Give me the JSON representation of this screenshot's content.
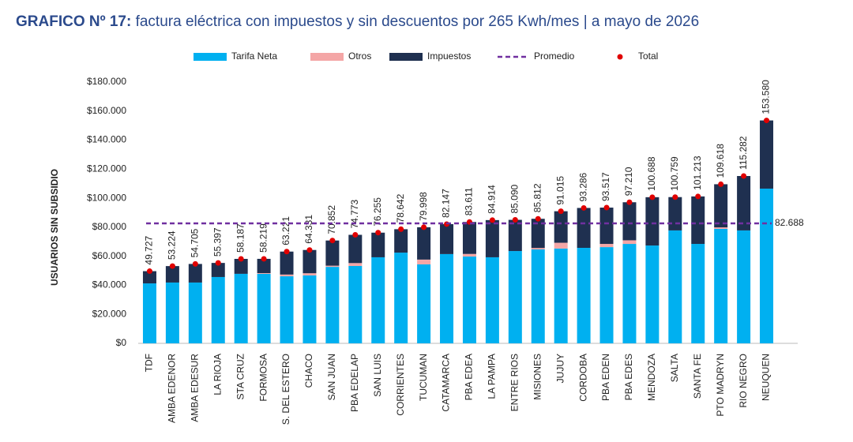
{
  "chart_data": {
    "type": "bar",
    "title": [
      "GRAFICO Nº 17:",
      "factura eléctrica con impuestos y sin descuentos por 265 Kwh/mes | a mayo de 2026"
    ],
    "y_label": "USUARIOS SIN SUBSIDIO",
    "categories": [
      "TDF",
      "AMBA EDENOR",
      "AMBA EDESUR",
      "LA RIOJA",
      "STA CRUZ",
      "FORMOSA",
      "S. DEL ESTERO",
      "CHACO",
      "SAN JUAN",
      "PBA EDELAP",
      "SAN LUIS",
      "CORRIENTES",
      "TUCUMAN",
      "CATAMARCA",
      "PBA EDEA",
      "LA PAMPA",
      "ENTRE RIOS",
      "MISIONES",
      "JUJUY",
      "CORDOBA",
      "PBA EDEN",
      "PBA EDES",
      "MENDOZA",
      "SALTA",
      "SANTA FE",
      "PTO MADRYN",
      "RIO NEGRO",
      "NEUQUEN"
    ],
    "stacked": true,
    "series": [
      {
        "name": "Tarifa Neta",
        "color": "#00b0f0",
        "type": "bar",
        "values": [
          41300,
          41900,
          41900,
          45700,
          47900,
          47900,
          46200,
          46800,
          52700,
          53300,
          59300,
          62500,
          54400,
          61500,
          59800,
          59300,
          63600,
          64700,
          65300,
          65800,
          66300,
          68500,
          67400,
          77800,
          68500,
          78900,
          77800,
          106600
        ]
      },
      {
        "name": "Otros",
        "color": "#f4a6a6",
        "type": "bar",
        "values": [
          0,
          0,
          0,
          0,
          0,
          500,
          1200,
          1500,
          800,
          2000,
          0,
          0,
          3300,
          0,
          1800,
          0,
          0,
          1000,
          4000,
          0,
          2200,
          2500,
          0,
          0,
          0,
          1000,
          0,
          0
        ]
      },
      {
        "name": "Impuestos",
        "color": "#1f3050",
        "type": "bar",
        "values": [
          8427,
          11324,
          12805,
          9697,
          10287,
          9819,
          15821,
          16031,
          17352,
          19473,
          16955,
          16142,
          22298,
          20647,
          22011,
          25614,
          21490,
          20112,
          21715,
          27486,
          25017,
          26210,
          33288,
          22959,
          32713,
          29718,
          37482,
          46980
        ]
      },
      {
        "name": "Total",
        "color": "#e00000",
        "type": "scatter",
        "values": [
          49727,
          53224,
          54705,
          55397,
          58187,
          58219,
          63221,
          64331,
          70852,
          74773,
          76255,
          78642,
          79998,
          82147,
          83611,
          84914,
          85090,
          85812,
          91015,
          93286,
          93517,
          97210,
          100688,
          100759,
          101213,
          109618,
          115282,
          153580
        ],
        "value_labels": [
          "49.727",
          "53.224",
          "54.705",
          "55.397",
          "58.187",
          "58.219",
          "63.221",
          "64.331",
          "70.852",
          "74.773",
          "76.255",
          "78.642",
          "79.998",
          "82.147",
          "83.611",
          "84.914",
          "85.090",
          "85.812",
          "91.015",
          "93.286",
          "93.517",
          "97.210",
          "100.688",
          "100.759",
          "101.213",
          "109.618",
          "115.282",
          "153.580"
        ]
      }
    ],
    "reference_line": {
      "name": "Promedio",
      "value": 82688,
      "value_label": "82.688",
      "color": "#7030a0"
    },
    "ylim": [
      0,
      180000
    ],
    "yticks": [
      {
        "value": 0,
        "label": "$0"
      },
      {
        "value": 20000,
        "label": "$20.000"
      },
      {
        "value": 40000,
        "label": "$40.000"
      },
      {
        "value": 60000,
        "label": "$60.000"
      },
      {
        "value": 80000,
        "label": "$80.000"
      },
      {
        "value": 100000,
        "label": "$100.000"
      },
      {
        "value": 120000,
        "label": "$120.000"
      },
      {
        "value": 140000,
        "label": "$140.000"
      },
      {
        "value": 160000,
        "label": "$160.000"
      },
      {
        "value": 180000,
        "label": "$180.000"
      }
    ],
    "grid": false
  }
}
